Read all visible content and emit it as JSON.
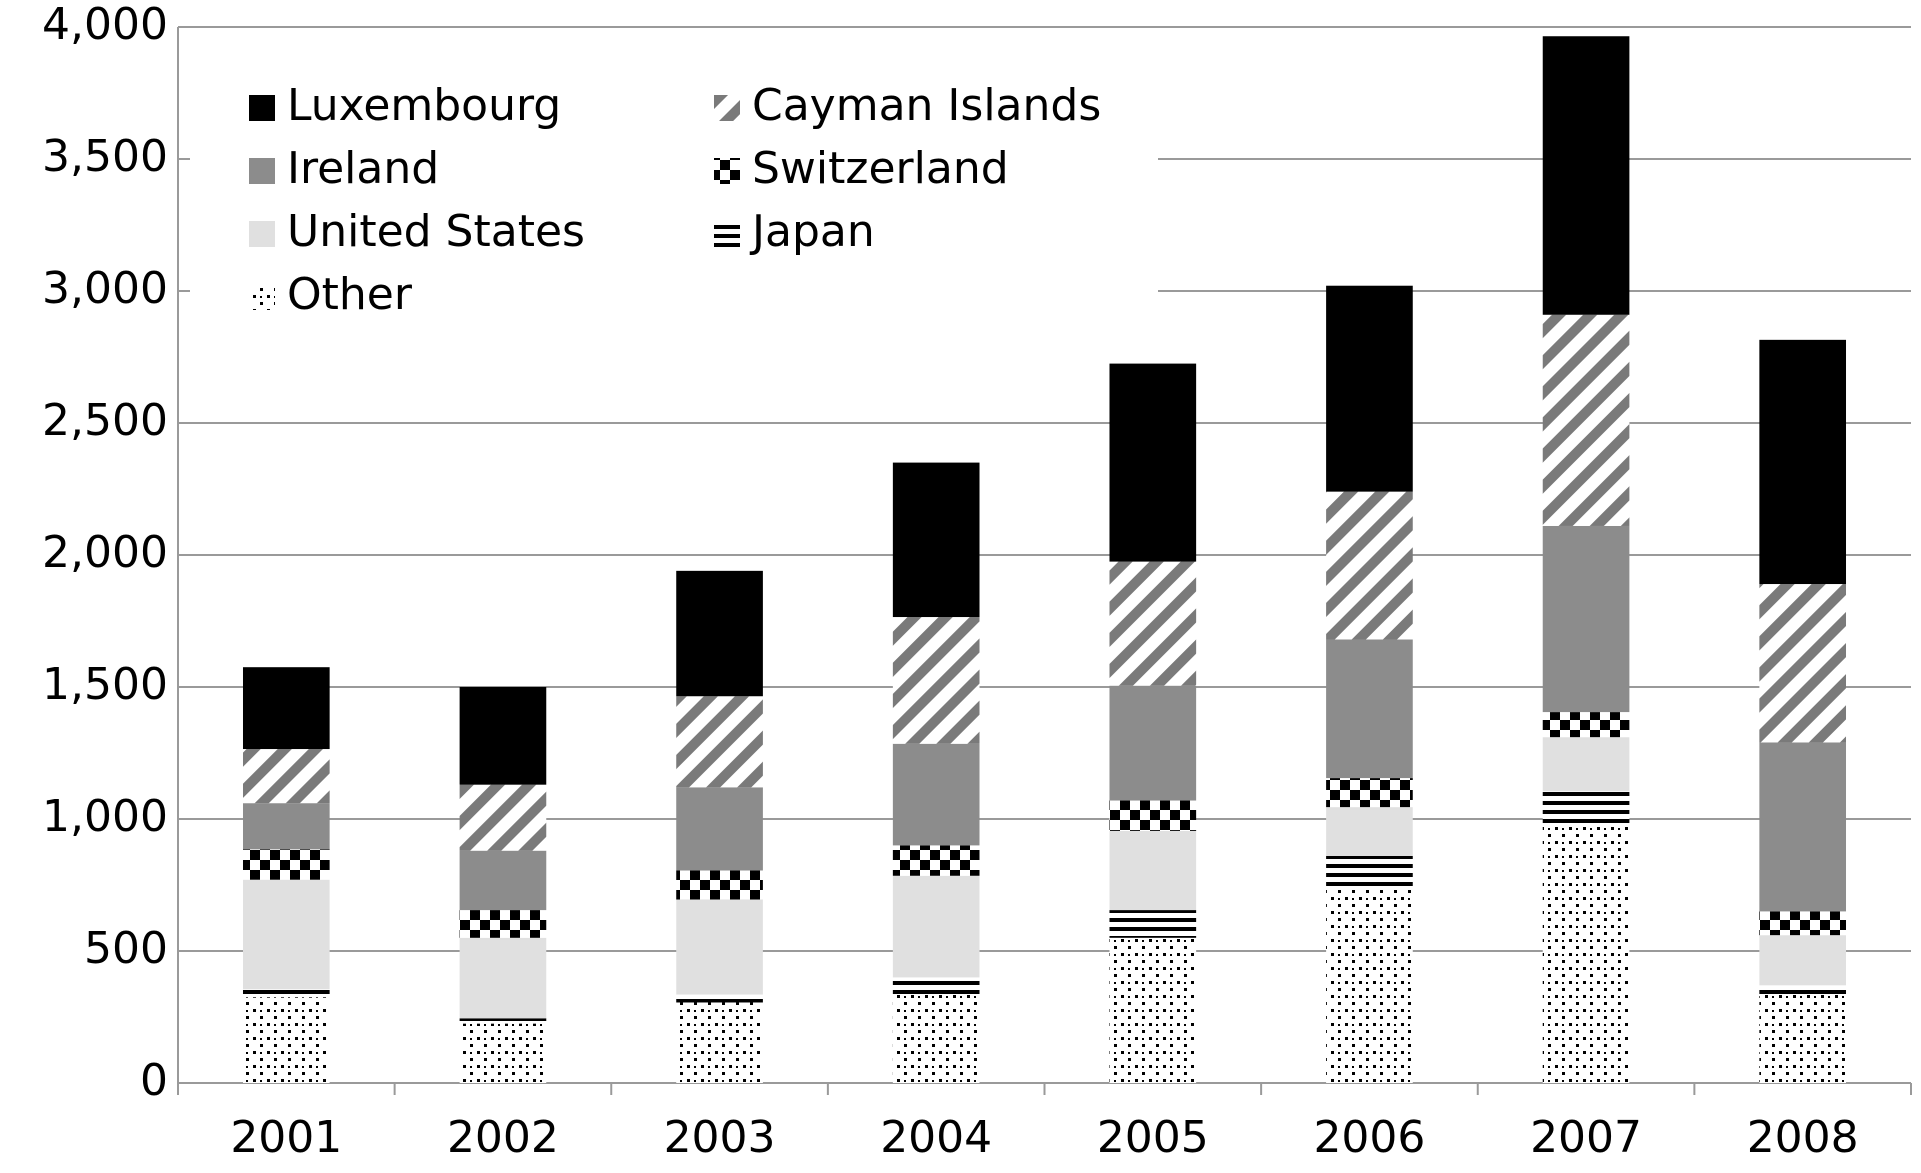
{
  "chart_data": {
    "type": "stacked_bar",
    "categories": [
      "2001",
      "2002",
      "2003",
      "2004",
      "2005",
      "2006",
      "2007",
      "2008"
    ],
    "series": [
      {
        "name": "Other",
        "color": "#000000",
        "pattern": "dots",
        "values": [
          325,
          225,
          305,
          335,
          550,
          735,
          970,
          335
        ]
      },
      {
        "name": "Japan",
        "color": "#000000",
        "pattern": "horizontal-stripes",
        "values": [
          30,
          20,
          30,
          65,
          105,
          125,
          135,
          35
        ]
      },
      {
        "name": "United States",
        "color": "#e0e0e0",
        "pattern": "solid",
        "values": [
          415,
          305,
          360,
          385,
          300,
          185,
          205,
          190
        ]
      },
      {
        "name": "Switzerland",
        "color": "#000000",
        "pattern": "checker",
        "values": [
          115,
          105,
          110,
          115,
          115,
          110,
          95,
          90
        ]
      },
      {
        "name": "Ireland",
        "color": "#8c8c8c",
        "pattern": "solid",
        "values": [
          175,
          225,
          315,
          385,
          435,
          525,
          705,
          640
        ]
      },
      {
        "name": "Cayman Islands",
        "color": "#7a7a7a",
        "pattern": "diagonal-stripes",
        "values": [
          205,
          250,
          345,
          480,
          470,
          560,
          800,
          600
        ]
      },
      {
        "name": "Luxembourg",
        "color": "#000000",
        "pattern": "solid",
        "values": [
          310,
          370,
          475,
          585,
          750,
          780,
          1055,
          925
        ]
      }
    ],
    "ylim": [
      0,
      4000
    ],
    "yticks": [
      0,
      500,
      {
        "value": 1000,
        "label": "1,000"
      },
      {
        "value": 1500,
        "label": "1,500"
      },
      {
        "value": 2000,
        "label": "2,000"
      },
      {
        "value": 2500,
        "label": "2,500"
      },
      {
        "value": 3000,
        "label": "3,000"
      },
      {
        "value": 3500,
        "label": "3,500"
      },
      {
        "value": 4000,
        "label": "4,000"
      }
    ],
    "grid": true
  }
}
